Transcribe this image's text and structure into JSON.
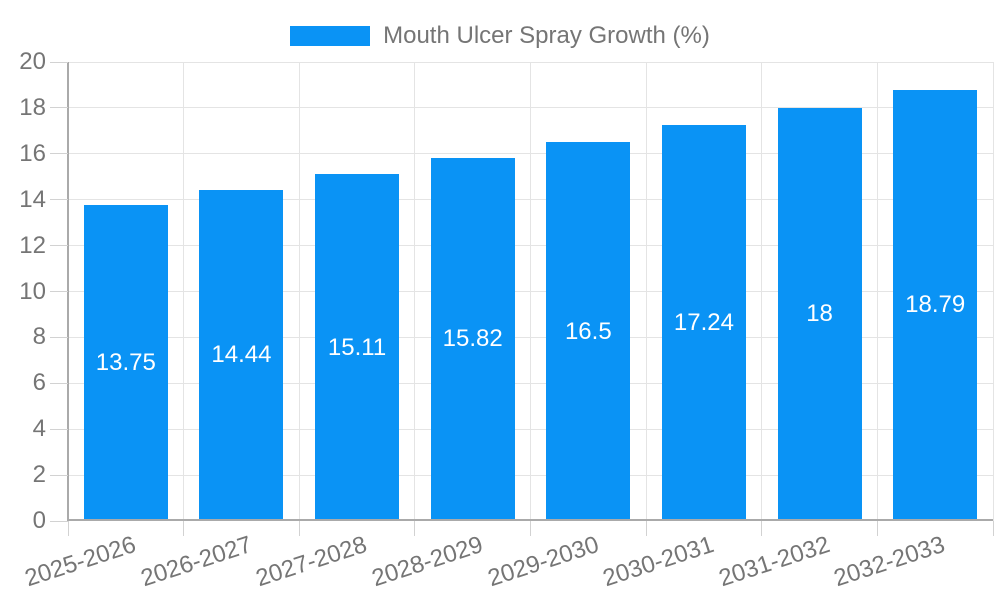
{
  "legend": {
    "label": "Mouth Ulcer Spray Growth (%)"
  },
  "colors": {
    "bar": "#0A93F5",
    "grid": "#E4E4E4",
    "axis": "#AAAAAA",
    "tick_mark": "#D2D2D2",
    "text": "#757575",
    "value_text": "#FFFFFF",
    "background": "#FFFFFF"
  },
  "chart_data": {
    "type": "bar",
    "title": "Mouth Ulcer Spray Growth (%)",
    "series_name": "Mouth Ulcer Spray Growth (%)",
    "categories": [
      "2025-2026",
      "2026-2027",
      "2027-2028",
      "2028-2029",
      "2029-2030",
      "2030-2031",
      "2031-2032",
      "2032-2033"
    ],
    "values": [
      13.75,
      14.44,
      15.11,
      15.82,
      16.5,
      17.24,
      18,
      18.79
    ],
    "value_labels": [
      "13.75",
      "14.44",
      "15.11",
      "15.82",
      "16.5",
      "17.24",
      "18",
      "18.79"
    ],
    "xlabel": "",
    "ylabel": "",
    "ylim": [
      0,
      20
    ],
    "yticks": [
      0,
      2,
      4,
      6,
      8,
      10,
      12,
      14,
      16,
      18,
      20
    ],
    "grid": true,
    "legend_position": "top",
    "bar_label_position": "center",
    "x_tick_rotation_deg": -18
  }
}
